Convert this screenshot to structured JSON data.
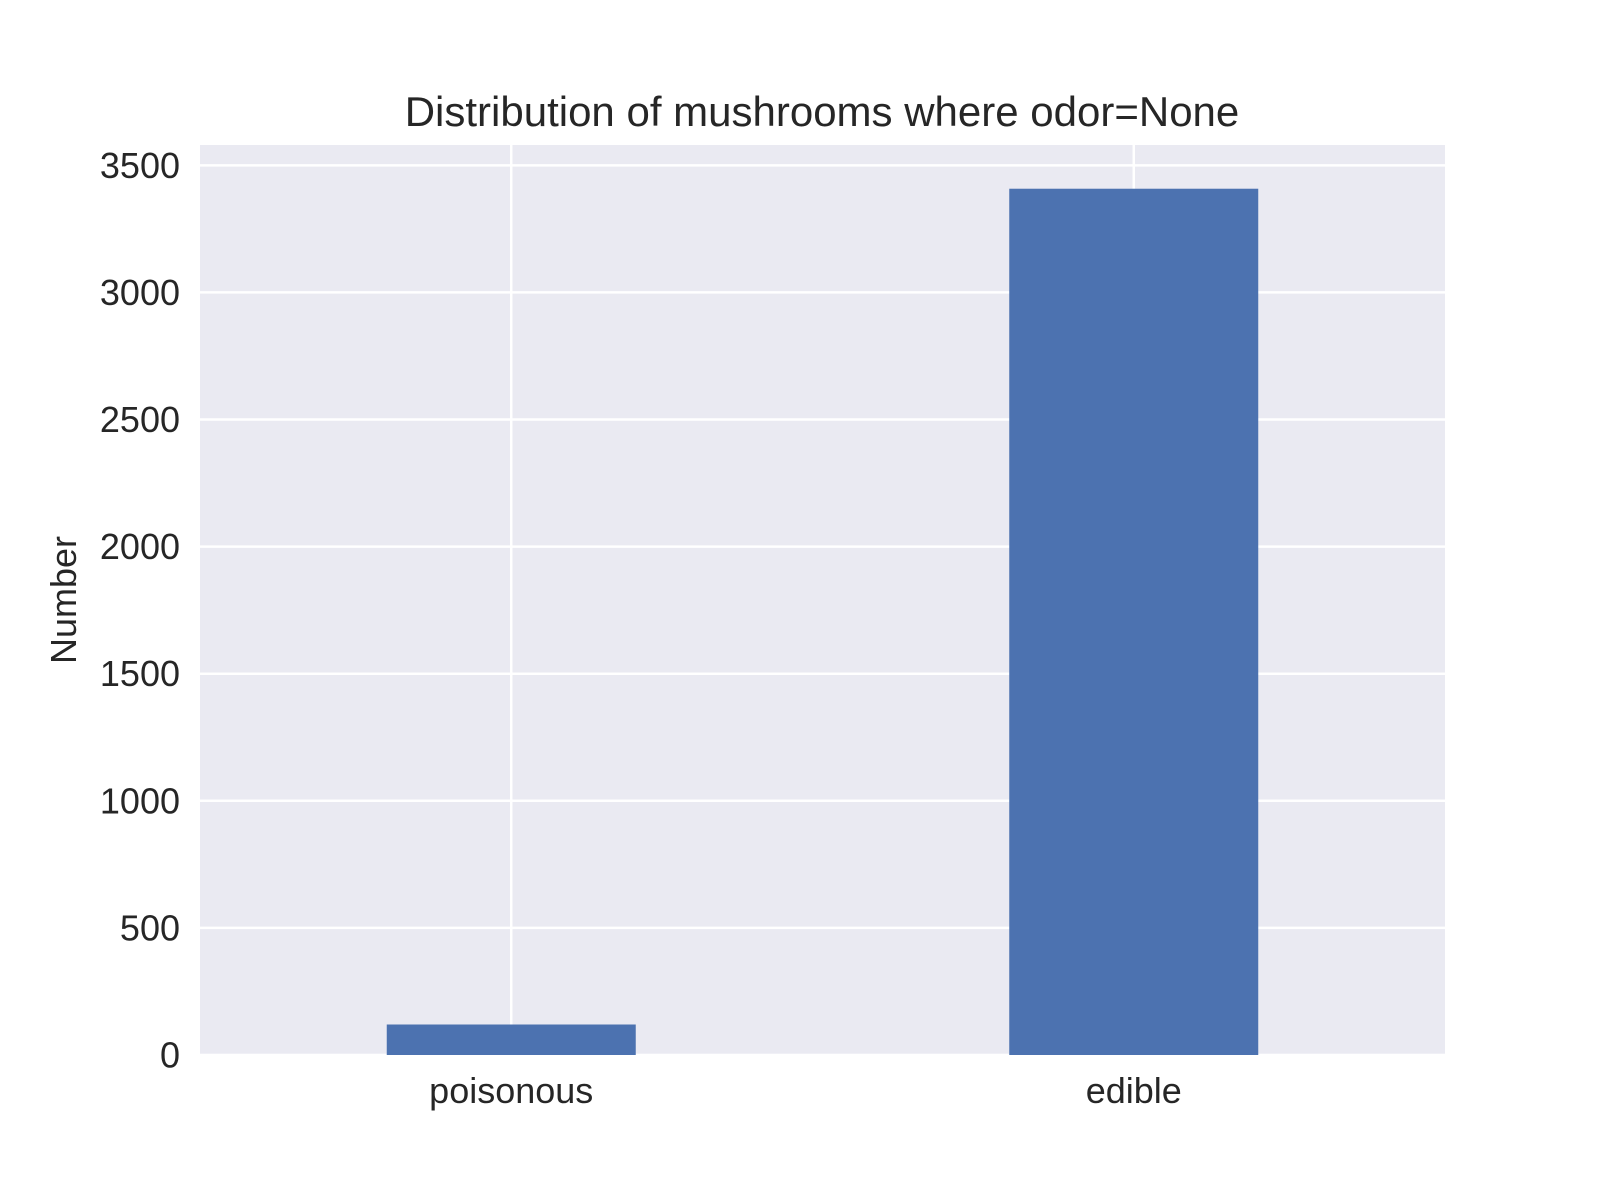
{
  "chart_data": {
    "type": "bar",
    "title": "Distribution of mushrooms where odor=None",
    "xlabel": "",
    "ylabel": "Number",
    "categories": [
      "poisonous",
      "edible"
    ],
    "values": [
      120,
      3408
    ],
    "ylim": [
      0,
      3580
    ],
    "yticks": [
      0,
      500,
      1000,
      1500,
      2000,
      2500,
      3000,
      3500
    ],
    "grid": true,
    "legend": "none",
    "colors": {
      "bar": "#4c72b0",
      "plot_background": "#eaeaf2",
      "grid": "#ffffff",
      "text": "#262626"
    }
  }
}
